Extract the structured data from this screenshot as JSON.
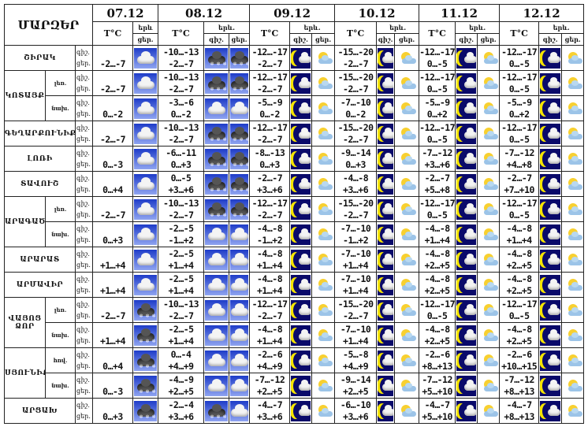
{
  "header": {
    "title": "ՄԱՐԶԵՐ",
    "temp_label": "T°C",
    "day_short": "երև",
    "day_label": "երև.",
    "night_label": "գիշ.",
    "daytime_label": "ցեր."
  },
  "dates": [
    "07.12",
    "08.12",
    "09.12",
    "10.12",
    "11.12",
    "12.12"
  ],
  "row_labels": {
    "night": "գիշ.",
    "day": "ցեր."
  },
  "rows": [
    {
      "region": "ՇԻՐԱԿ",
      "sub": "",
      "span": 1,
      "t07": "-2…-7",
      "i07": "cloud",
      "days": [
        [
          "-10…-13",
          "-2…-7",
          "snow",
          "snow"
        ],
        [
          "-12…-17",
          "-2…-7",
          "moon",
          "sun"
        ],
        [
          "-15…-20",
          "-2…-7",
          "moon",
          "sun"
        ],
        [
          "-12…-17",
          "0…-5",
          "moon",
          "sun"
        ],
        [
          "-12…-17",
          "0…-5",
          "moon",
          "sun"
        ]
      ]
    },
    {
      "region": "ԿՈՏԱՅՔ",
      "sub": "լեռ.",
      "span": 2,
      "t07": "-2…-7",
      "i07": "cloud",
      "days": [
        [
          "-10…-13",
          "-2…-7",
          "snow",
          "snow"
        ],
        [
          "-12…-17",
          "-2…-7",
          "moon",
          "sun"
        ],
        [
          "-15…-20",
          "-2…-7",
          "moon",
          "sun"
        ],
        [
          "-12…-17",
          "0…-5",
          "moon",
          "sun"
        ],
        [
          "-12…-17",
          "0…-5",
          "moon",
          "sun"
        ]
      ]
    },
    {
      "region": null,
      "sub": "նախ.",
      "span": 0,
      "t07": "0…-2",
      "i07": "cloud",
      "days": [
        [
          "-3…-6",
          "0…-2",
          "cloud",
          "cloud"
        ],
        [
          "-5…-9",
          "0…-2",
          "moon",
          "sun"
        ],
        [
          "-7…-10",
          "0…-2",
          "moon",
          "sun"
        ],
        [
          "-5…-9",
          "0…+2",
          "moon",
          "sun"
        ],
        [
          "-5…-9",
          "0…+2",
          "moon",
          "sun"
        ]
      ]
    },
    {
      "region": "ԳԵՂԱՐՔՈՒՆԻՔ",
      "sub": "",
      "span": 1,
      "t07": "-2…-7",
      "i07": "cloud",
      "days": [
        [
          "-10…-13",
          "-2…-7",
          "snow",
          "snow"
        ],
        [
          "-12…-17",
          "-2…-7",
          "moon",
          "sun"
        ],
        [
          "-15…-20",
          "-2…-7",
          "moon",
          "sun"
        ],
        [
          "-12…-17",
          "0…-5",
          "moon",
          "sun"
        ],
        [
          "-12…-17",
          "0…-5",
          "moon",
          "sun"
        ]
      ]
    },
    {
      "region": "ԼՈՌԻ",
      "sub": "",
      "span": 1,
      "t07": "0…-3",
      "i07": "cloud",
      "days": [
        [
          "-6…-11",
          "0…+3",
          "snow",
          "snow"
        ],
        [
          "-8…-13",
          "0…+3",
          "moon",
          "sun"
        ],
        [
          "-9…-14",
          "0…+3",
          "moon",
          "sun"
        ],
        [
          "-7…-12",
          "+3…+6",
          "moon",
          "sun"
        ],
        [
          "-7…-12",
          "+4…+8",
          "moon",
          "sun"
        ]
      ]
    },
    {
      "region": "ՏԱՎՈՒՇ",
      "sub": "",
      "span": 1,
      "t07": "0…+4",
      "i07": "cloud",
      "days": [
        [
          "0…-5",
          "+3…+6",
          "snow",
          "snow"
        ],
        [
          "-2…-7",
          "+3…+6",
          "moon",
          "sun"
        ],
        [
          "-4…-8",
          "+3…+6",
          "moon",
          "sun"
        ],
        [
          "-2…-7",
          "+5…+8",
          "moon",
          "sun"
        ],
        [
          "-2…-7",
          "+7…+10",
          "moon",
          "sun"
        ]
      ]
    },
    {
      "region": "ԱՐԱԳԱԾՈՏՆ",
      "sub": "լեռ.",
      "span": 2,
      "t07": "-2…-7",
      "i07": "cloud",
      "days": [
        [
          "-10…-13",
          "-2…-7",
          "snow",
          "snow"
        ],
        [
          "-12…-17",
          "-2…-7",
          "moon",
          "sun"
        ],
        [
          "-15…-20",
          "-2…-7",
          "moon",
          "sun"
        ],
        [
          "-12…-17",
          "0…-5",
          "moon",
          "sun"
        ],
        [
          "-12…-17",
          "0…-5",
          "moon",
          "sun"
        ]
      ]
    },
    {
      "region": null,
      "sub": "նախ.",
      "span": 0,
      "t07": "0…+3",
      "i07": "cloud",
      "days": [
        [
          "-2…-5",
          "-1…+2",
          "cloud",
          "cloud"
        ],
        [
          "-4…-8",
          "-1…+2",
          "moon",
          "sun"
        ],
        [
          "-7…-10",
          "-1…+2",
          "moon",
          "sun"
        ],
        [
          "-4…-8",
          "+1…+4",
          "moon",
          "sun"
        ],
        [
          "-4…-8",
          "+1…+4",
          "moon",
          "sun"
        ]
      ]
    },
    {
      "region": "ԱՐԱՐԱՏ",
      "sub": "",
      "span": 1,
      "t07": "+1…+4",
      "i07": "cloud",
      "days": [
        [
          "-2…-5",
          "+1…+4",
          "cloud",
          "cloud"
        ],
        [
          "-4…-8",
          "+1…+4",
          "moon",
          "sun"
        ],
        [
          "-7…-10",
          "+1…+4",
          "moon",
          "sun"
        ],
        [
          "-4…-8",
          "+2…+5",
          "moon",
          "sun"
        ],
        [
          "-4…-8",
          "+2…+5",
          "moon",
          "sun"
        ]
      ]
    },
    {
      "region": "ԱՐՄԱՎԻՐ",
      "sub": "",
      "span": 1,
      "t07": "+1…+4",
      "i07": "cloud",
      "days": [
        [
          "-2…-5",
          "+1…+4",
          "cloud",
          "cloud"
        ],
        [
          "-4…-8",
          "+1…+4",
          "moon",
          "sun"
        ],
        [
          "-7…-10",
          "+1…+4",
          "moon",
          "sun"
        ],
        [
          "-4…-8",
          "+2…+5",
          "moon",
          "sun"
        ],
        [
          "-4…-8",
          "+2…+5",
          "moon",
          "sun"
        ]
      ]
    },
    {
      "region": "ՎԱՅՈՑ ՁՈՐ",
      "sub": "լեռ.",
      "span": 2,
      "t07": "-2…-7",
      "i07": "snow",
      "days": [
        [
          "-10…-13",
          "-2…-7",
          "cloud",
          "cloud"
        ],
        [
          "-12…-17",
          "-2…-7",
          "moon",
          "sun"
        ],
        [
          "-15…-20",
          "-2…-7",
          "moon",
          "sun"
        ],
        [
          "-12…-17",
          "0…-5",
          "moon",
          "sun"
        ],
        [
          "-12…-17",
          "0…-5",
          "moon",
          "sun"
        ]
      ]
    },
    {
      "region": null,
      "sub": "նախ.",
      "span": 0,
      "t07": "+1…+4",
      "i07": "snow",
      "days": [
        [
          "-2…-5",
          "+1…+4",
          "cloud",
          "cloud"
        ],
        [
          "-4…-8",
          "+1…+4",
          "moon",
          "sun"
        ],
        [
          "-7…-10",
          "+1…+4",
          "moon",
          "sun"
        ],
        [
          "-4…-8",
          "+2…+5",
          "moon",
          "sun"
        ],
        [
          "-4…-8",
          "+2…+5",
          "moon",
          "sun"
        ]
      ]
    },
    {
      "region": "ՍՅՈՒՆԻՔ",
      "sub": "հով.",
      "span": 2,
      "t07": "0…+4",
      "i07": "snow",
      "days": [
        [
          "0…-4",
          "+4…+9",
          "cloud",
          "cloud"
        ],
        [
          "-2…-6",
          "+4…+9",
          "moon",
          "sun"
        ],
        [
          "-5…-8",
          "+4…+9",
          "moon",
          "sun"
        ],
        [
          "-2…-6",
          "+8…+13",
          "moon",
          "sun"
        ],
        [
          "-2…-6",
          "+10…+15",
          "moon",
          "sun"
        ]
      ]
    },
    {
      "region": null,
      "sub": "նախ.",
      "span": 0,
      "t07": "0…-3",
      "i07": "snow",
      "days": [
        [
          "-4…-9",
          "+2…+5",
          "cloud",
          "cloud"
        ],
        [
          "-7…-12",
          "+2…+5",
          "moon",
          "sun"
        ],
        [
          "-9…-14",
          "+2…+5",
          "moon",
          "sun"
        ],
        [
          "-7…-12",
          "+5…+10",
          "moon",
          "sun"
        ],
        [
          "-7…-12",
          "+8…+13",
          "moon",
          "sun"
        ]
      ]
    },
    {
      "region": "ԱՐՑԱԽ",
      "sub": "",
      "span": 1,
      "t07": "0…+3",
      "i07": "snow",
      "days": [
        [
          "-2…-4",
          "+3…+6",
          "snow",
          "cloud"
        ],
        [
          "-4…-7",
          "+3…+6",
          "moon",
          "sun"
        ],
        [
          "-6…-10",
          "+3…+6",
          "moon",
          "sun"
        ],
        [
          "-4…-7",
          "+5…+10",
          "moon",
          "sun"
        ],
        [
          "-4…-7",
          "+8…+13",
          "moon",
          "sun"
        ]
      ]
    }
  ]
}
